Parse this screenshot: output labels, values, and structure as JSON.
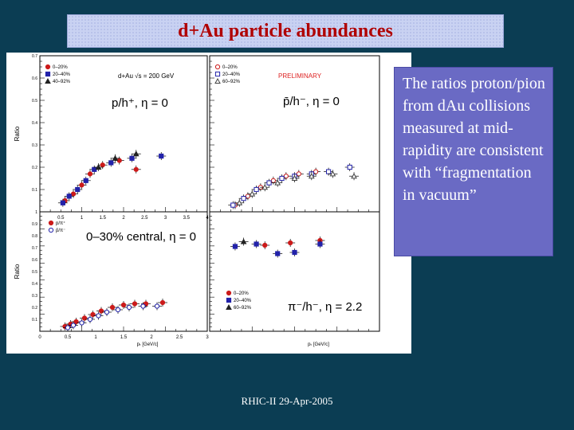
{
  "slide": {
    "title": "d+Au particle abundances",
    "callout": "The ratios proton/pion from dAu collisions measured at mid-rapidity are consistent with “fragmentation in vacuum”",
    "footer": "RHIC-II 29-Apr-2005"
  },
  "colors": {
    "background": "#0b3d53",
    "title_text": "#b00000",
    "title_box": "#c9d2f2",
    "callout_box": "#6a6ac4",
    "series_0_20": "#cc1a1a",
    "series_20_40": "#2222aa",
    "series_40_60": "#222222",
    "series_60_92": "#444444",
    "preliminary": "#dd2222"
  },
  "chart_data": [
    {
      "type": "scatter",
      "panel": "top-left",
      "ylabel": "Ratio",
      "label": "p/h⁺, η = 0",
      "header": "d+Au √s = 200 GeV",
      "legend": [
        "0–20%",
        "20–40%",
        "40–92%"
      ],
      "xlim": [
        0,
        4
      ],
      "ylim": [
        0,
        0.7
      ],
      "xticks": [
        "0.5",
        "1",
        "1.5",
        "2",
        "2.5",
        "3",
        "3.5",
        "4"
      ],
      "yticks": [
        "0.1",
        "0.2",
        "0.3",
        "0.4",
        "0.5",
        "0.6",
        "0.7"
      ],
      "series": [
        {
          "name": "0–20%",
          "color": "#cc1a1a",
          "marker": "circle",
          "x": [
            0.6,
            0.8,
            1.0,
            1.2,
            1.5,
            1.9,
            2.3
          ],
          "y": [
            0.05,
            0.08,
            0.12,
            0.17,
            0.21,
            0.23,
            0.19
          ]
        },
        {
          "name": "20–40%",
          "color": "#2222aa",
          "marker": "square",
          "x": [
            0.55,
            0.7,
            0.9,
            1.1,
            1.3,
            1.7,
            2.2,
            2.9
          ],
          "y": [
            0.04,
            0.07,
            0.1,
            0.14,
            0.19,
            0.22,
            0.24,
            0.25
          ]
        },
        {
          "name": "40–92%",
          "color": "#222222",
          "marker": "triangle",
          "x": [
            1.4,
            1.8,
            2.3
          ],
          "y": [
            0.2,
            0.24,
            0.26
          ]
        }
      ]
    },
    {
      "type": "scatter",
      "panel": "top-right",
      "label": "p̄/h⁻, η = 0",
      "header": "PRELIMINARY",
      "legend": [
        "0–20%",
        "20–40%",
        "60–92%"
      ],
      "xlim": [
        0,
        4
      ],
      "ylim": [
        0,
        0.7
      ],
      "series": [
        {
          "name": "0–20%",
          "color": "#cc1a1a",
          "marker": "circle-open",
          "x": [
            0.6,
            0.9,
            1.2,
            1.5,
            1.8,
            2.1,
            2.5
          ],
          "y": [
            0.03,
            0.07,
            0.11,
            0.14,
            0.16,
            0.17,
            0.18
          ]
        },
        {
          "name": "20–40%",
          "color": "#2222aa",
          "marker": "square-open",
          "x": [
            0.55,
            0.8,
            1.1,
            1.4,
            1.7,
            2.0,
            2.4,
            2.8,
            3.3
          ],
          "y": [
            0.03,
            0.06,
            0.1,
            0.13,
            0.15,
            0.16,
            0.17,
            0.18,
            0.2
          ]
        },
        {
          "name": "60–92%",
          "color": "#444444",
          "marker": "triangle-open",
          "x": [
            0.7,
            1.0,
            1.3,
            1.6,
            2.0,
            2.4,
            2.9,
            3.4
          ],
          "y": [
            0.04,
            0.08,
            0.11,
            0.13,
            0.15,
            0.16,
            0.17,
            0.16
          ]
        }
      ]
    },
    {
      "type": "scatter",
      "panel": "bottom-left",
      "ylabel": "Ratio",
      "xlabel": "pₜ [GeV/c]",
      "label": "0–30% central, η = 0",
      "legend": [
        "p/π⁺",
        "p̄/π⁻"
      ],
      "xlim": [
        0,
        3
      ],
      "ylim": [
        0,
        1
      ],
      "xticks": [
        "0",
        "0.5",
        "1",
        "1.5",
        "2",
        "2.5",
        "3"
      ],
      "yticks": [
        "0.1",
        "0.2",
        "0.3",
        "0.4",
        "0.5",
        "0.6",
        "0.7",
        "0.8",
        "0.9",
        "1"
      ],
      "series": [
        {
          "name": "p/π⁺",
          "color": "#cc1a1a",
          "marker": "circle",
          "x": [
            0.45,
            0.55,
            0.65,
            0.8,
            0.95,
            1.1,
            1.3,
            1.5,
            1.7,
            1.9,
            2.2
          ],
          "y": [
            0.04,
            0.06,
            0.08,
            0.11,
            0.14,
            0.17,
            0.2,
            0.22,
            0.23,
            0.23,
            0.24
          ]
        },
        {
          "name": "p̄/π⁻",
          "color": "#2222aa",
          "marker": "circle-open",
          "x": [
            0.5,
            0.6,
            0.75,
            0.9,
            1.05,
            1.2,
            1.4,
            1.6,
            1.85,
            2.1
          ],
          "y": [
            0.03,
            0.05,
            0.07,
            0.1,
            0.13,
            0.16,
            0.18,
            0.2,
            0.21,
            0.21
          ]
        }
      ]
    },
    {
      "type": "scatter",
      "panel": "bottom-right",
      "xlabel": "pₜ [GeV/c]",
      "label": "π⁻/h⁻, η = 2.2",
      "legend": [
        "0–20%",
        "20–40%",
        "60–92%"
      ],
      "xlim": [
        0,
        4
      ],
      "ylim": [
        0,
        1
      ],
      "series": [
        {
          "name": "0–20%",
          "color": "#cc1a1a",
          "marker": "circle",
          "x": [
            1.3,
            1.9,
            2.6
          ],
          "y": [
            0.72,
            0.74,
            0.76
          ]
        },
        {
          "name": "20–40%",
          "color": "#2222aa",
          "marker": "square",
          "x": [
            0.6,
            1.1,
            1.6,
            2.0,
            2.6
          ],
          "y": [
            0.71,
            0.73,
            0.65,
            0.66,
            0.73
          ]
        },
        {
          "name": "60–92%",
          "color": "#222222",
          "marker": "triangle",
          "x": [
            0.8
          ],
          "y": [
            0.75
          ]
        }
      ]
    }
  ]
}
